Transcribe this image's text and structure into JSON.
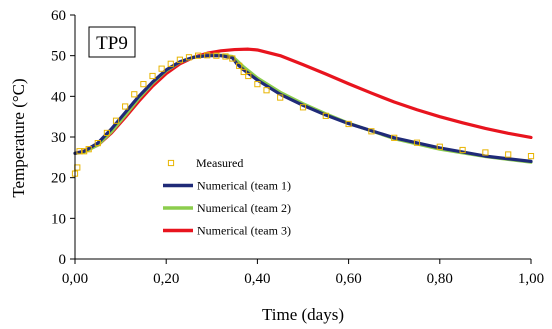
{
  "chart_data": {
    "type": "line",
    "annotation": "TP9",
    "xlabel": "Time (days)",
    "ylabel": "Temperature (°C)",
    "xlim": [
      0,
      1
    ],
    "ylim": [
      0,
      60
    ],
    "x_ticks": [
      0,
      0.2,
      0.4,
      0.6,
      0.8,
      1.0
    ],
    "x_tick_labels": [
      "0,00",
      "0,20",
      "0,40",
      "0,60",
      "0,80",
      "1,00"
    ],
    "y_ticks": [
      0,
      10,
      20,
      30,
      40,
      50,
      60
    ],
    "y_tick_labels": [
      "0",
      "10",
      "20",
      "30",
      "40",
      "50",
      "60"
    ],
    "grid": false,
    "legend_position": "left-center",
    "series": [
      {
        "name": "Measured",
        "style": "markers",
        "color": "#e8b400",
        "x": [
          0.0,
          0.005,
          0.01,
          0.02,
          0.03,
          0.05,
          0.07,
          0.09,
          0.11,
          0.13,
          0.15,
          0.17,
          0.19,
          0.21,
          0.23,
          0.25,
          0.27,
          0.29,
          0.31,
          0.33,
          0.345,
          0.36,
          0.37,
          0.38,
          0.4,
          0.42,
          0.45,
          0.5,
          0.55,
          0.6,
          0.65,
          0.7,
          0.75,
          0.8,
          0.85,
          0.9,
          0.95,
          1.0
        ],
        "y": [
          21,
          22.5,
          26.5,
          26.5,
          27,
          28.5,
          31,
          34,
          37.5,
          40.5,
          43,
          45,
          46.8,
          48,
          49,
          49.6,
          50,
          50.1,
          50,
          49.8,
          49.3,
          47.5,
          46,
          45,
          43,
          41.5,
          39.7,
          37.3,
          35.2,
          33.2,
          31.4,
          29.8,
          28.6,
          27.6,
          26.8,
          26.2,
          25.7,
          25.3
        ]
      },
      {
        "name": "Numerical (team 1)",
        "style": "line",
        "color": "#1f2a78",
        "x": [
          0.0,
          0.02,
          0.05,
          0.08,
          0.11,
          0.14,
          0.17,
          0.2,
          0.23,
          0.26,
          0.29,
          0.32,
          0.345,
          0.355,
          0.37,
          0.4,
          0.45,
          0.5,
          0.55,
          0.6,
          0.7,
          0.8,
          0.9,
          1.0
        ],
        "y": [
          26,
          26.5,
          28.5,
          32,
          36,
          40,
          43.5,
          46.5,
          48.5,
          49.6,
          50,
          50,
          49.5,
          48,
          46.5,
          44,
          40.5,
          37.8,
          35.4,
          33.3,
          29.8,
          27.3,
          25.3,
          24
        ]
      },
      {
        "name": "Numerical (team 2)",
        "style": "line",
        "color": "#8ccd4d",
        "x": [
          0.0,
          0.02,
          0.05,
          0.08,
          0.11,
          0.14,
          0.17,
          0.2,
          0.23,
          0.26,
          0.29,
          0.32,
          0.345,
          0.355,
          0.37,
          0.4,
          0.45,
          0.5,
          0.55,
          0.6,
          0.7,
          0.8,
          0.9,
          1.0
        ],
        "y": [
          26,
          26.3,
          28,
          31.3,
          35.3,
          39.5,
          43.2,
          46.3,
          48.4,
          49.6,
          50.1,
          50.1,
          49.8,
          48.8,
          47.2,
          44.5,
          41,
          38.2,
          35.7,
          33.4,
          29.6,
          27,
          25.2,
          23.8
        ]
      },
      {
        "name": "Numerical (team 3)",
        "style": "line",
        "color": "#e8141e",
        "x": [
          0.0,
          0.02,
          0.05,
          0.08,
          0.11,
          0.14,
          0.17,
          0.2,
          0.23,
          0.26,
          0.29,
          0.32,
          0.35,
          0.38,
          0.4,
          0.45,
          0.5,
          0.55,
          0.6,
          0.65,
          0.7,
          0.75,
          0.8,
          0.85,
          0.9,
          0.95,
          1.0
        ],
        "y": [
          26,
          26.5,
          28,
          31,
          34.8,
          38.8,
          42.5,
          45.6,
          48,
          49.6,
          50.6,
          51.2,
          51.5,
          51.6,
          51.4,
          50,
          47.8,
          45.5,
          43.1,
          40.8,
          38.6,
          36.7,
          35,
          33.5,
          32.1,
          30.9,
          29.9
        ]
      }
    ]
  }
}
